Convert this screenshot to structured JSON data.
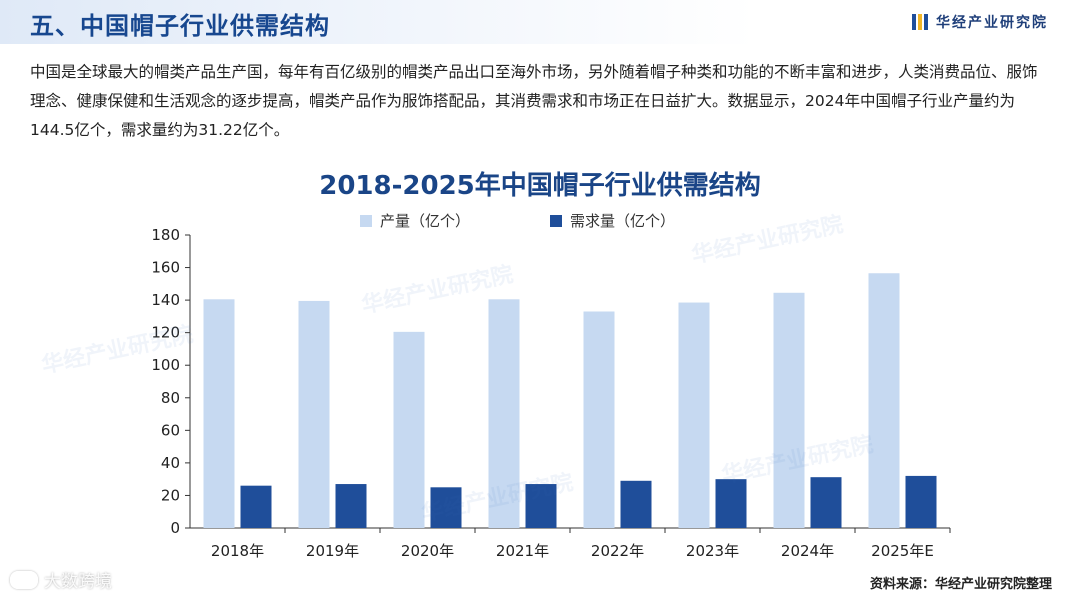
{
  "header": {
    "title": "五、中国帽子行业供需结构",
    "brand": "华经产业研究院"
  },
  "intro": "中国是全球最大的帽类产品生产国，每年有百亿级别的帽类产品出口至海外市场，另外随着帽子种类和功能的不断丰富和进步，人类消费品位、服饰理念、健康保健和生活观念的逐步提高，帽类产品作为服饰搭配品，其消费需求和市场正在日益扩大。数据显示，2024年中国帽子行业产量约为144.5亿个，需求量约为31.22亿个。",
  "source": "资料来源：华经产业研究院整理",
  "platform": "大数跨境",
  "watermark": "华经产业研究院",
  "chart_data": {
    "type": "bar",
    "title": "2018-2025年中国帽子行业供需结构",
    "categories": [
      "2018年",
      "2019年",
      "2020年",
      "2021年",
      "2022年",
      "2023年",
      "2024年",
      "2025年E"
    ],
    "series": [
      {
        "name": "产量（亿个）",
        "color": "#c6d9f1",
        "values": [
          140.5,
          139.5,
          120.5,
          140.5,
          133.0,
          138.5,
          144.5,
          156.5
        ]
      },
      {
        "name": "需求量（亿个）",
        "color": "#1f4e9a",
        "values": [
          26.0,
          27.0,
          25.0,
          27.0,
          29.0,
          30.0,
          31.22,
          32.0
        ]
      }
    ],
    "ylim": [
      0,
      180
    ],
    "yticks": [
      0,
      20,
      40,
      60,
      80,
      100,
      120,
      140,
      160,
      180
    ],
    "xlabel": "",
    "ylabel": "",
    "legend": "top",
    "grid": false
  }
}
